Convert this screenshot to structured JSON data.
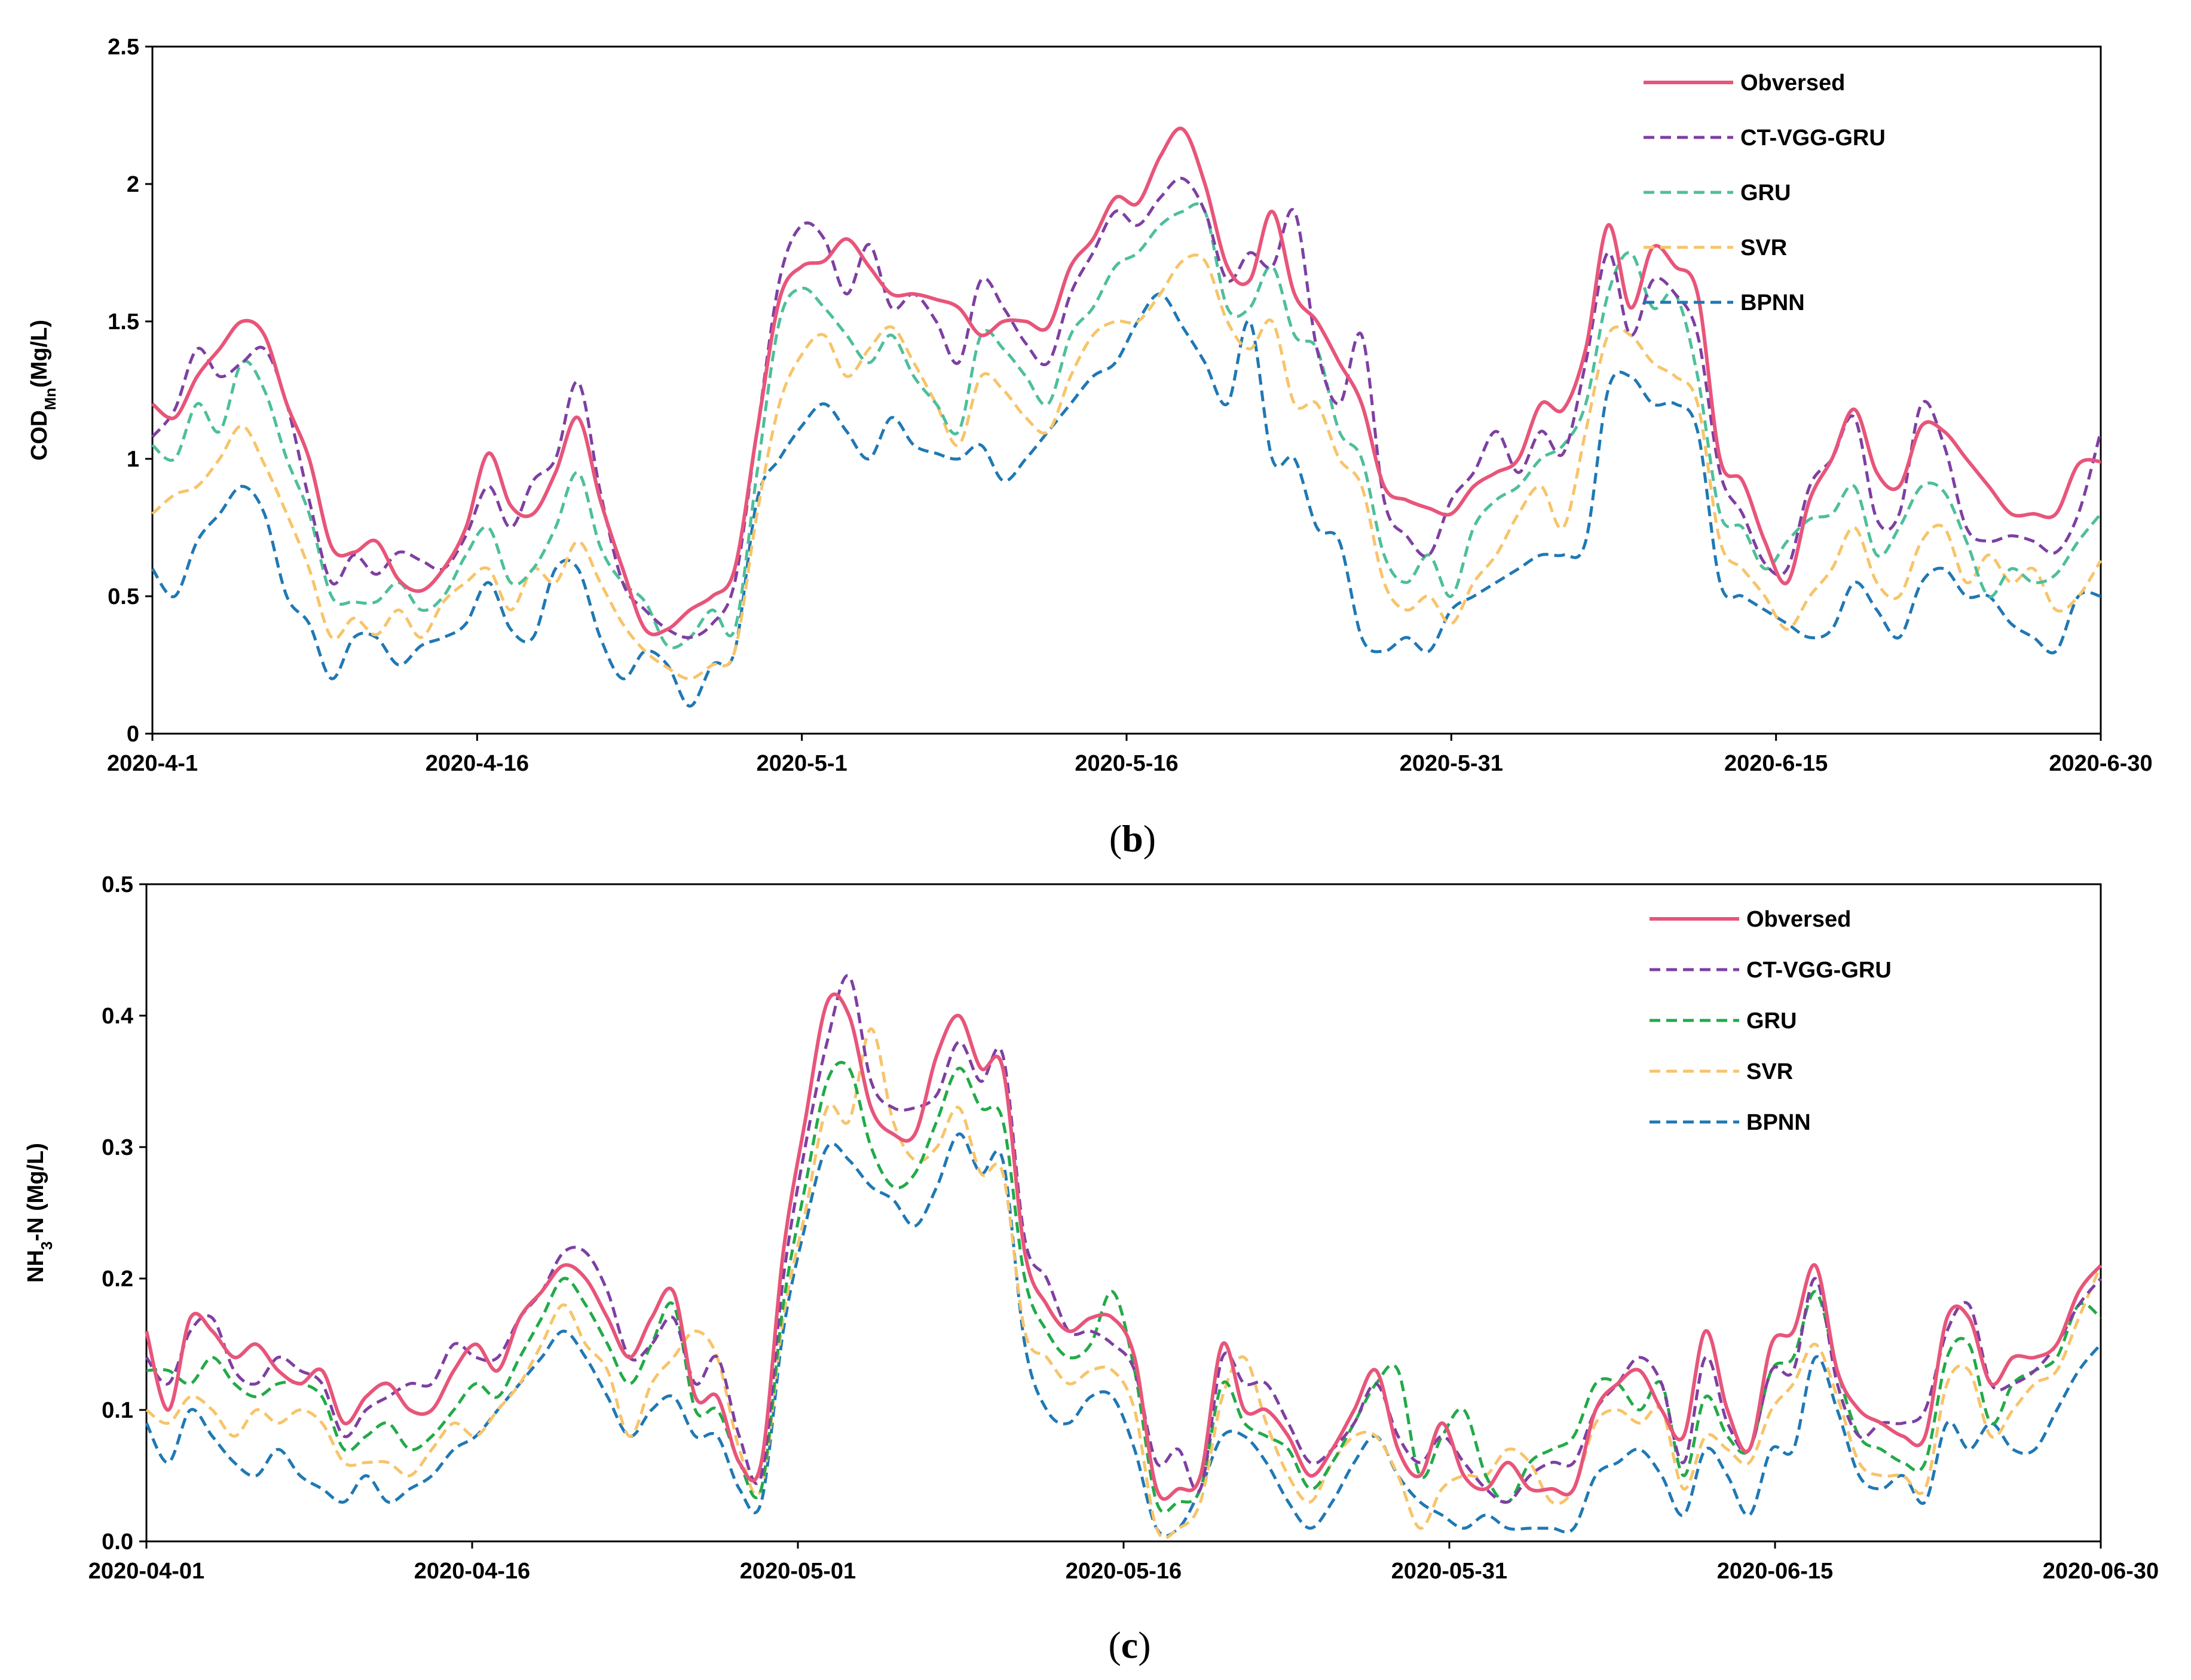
{
  "chart_data": [
    {
      "type": "line",
      "panel": "b",
      "caption": {
        "open": "(",
        "letter": "b",
        "close": ")"
      },
      "ylabel": {
        "base": "COD",
        "sub": "Mn",
        "rest": "(Mg/L)"
      },
      "ylim": [
        0,
        2.5
      ],
      "yticks": [
        "0",
        "0.5",
        "1",
        "1.5",
        "2",
        "2.5"
      ],
      "xticks": [
        "2020-4-1",
        "2020-4-16",
        "2020-5-1",
        "2020-5-16",
        "2020-5-31",
        "2020-6-15",
        "2020-6-30"
      ],
      "legend_position": "top-right",
      "series": [
        {
          "name": "Obversed",
          "color": "#e8557a",
          "dashed": false,
          "values": [
            1.2,
            1.15,
            1.3,
            1.4,
            1.5,
            1.45,
            1.2,
            1.0,
            0.68,
            0.66,
            0.7,
            0.56,
            0.52,
            0.6,
            0.75,
            1.02,
            0.83,
            0.8,
            0.95,
            1.15,
            0.85,
            0.6,
            0.38,
            0.38,
            0.45,
            0.5,
            0.6,
            1.1,
            1.58,
            1.7,
            1.72,
            1.8,
            1.7,
            1.6,
            1.6,
            1.58,
            1.55,
            1.45,
            1.5,
            1.5,
            1.48,
            1.7,
            1.8,
            1.95,
            1.93,
            2.1,
            2.2,
            2.0,
            1.7,
            1.65,
            1.9,
            1.6,
            1.5,
            1.35,
            1.2,
            0.9,
            0.85,
            0.82,
            0.8,
            0.9,
            0.95,
            1.0,
            1.2,
            1.18,
            1.4,
            1.85,
            1.55,
            1.77,
            1.7,
            1.6,
            1.0,
            0.92,
            0.7,
            0.55,
            0.85,
            1.0,
            1.18,
            0.95,
            0.9,
            1.12,
            1.1,
            1.0,
            0.9,
            0.8,
            0.8,
            0.8,
            0.98,
            0.99
          ]
        },
        {
          "name": "CT-VGG-GRU",
          "color": "#7e3fa2",
          "dashed": true,
          "values": [
            1.08,
            1.18,
            1.4,
            1.3,
            1.35,
            1.4,
            1.2,
            0.85,
            0.55,
            0.65,
            0.58,
            0.66,
            0.63,
            0.6,
            0.72,
            0.9,
            0.75,
            0.92,
            1.0,
            1.28,
            0.88,
            0.55,
            0.45,
            0.38,
            0.35,
            0.4,
            0.55,
            1.1,
            1.65,
            1.85,
            1.8,
            1.6,
            1.78,
            1.55,
            1.6,
            1.5,
            1.35,
            1.65,
            1.55,
            1.42,
            1.35,
            1.6,
            1.75,
            1.9,
            1.85,
            1.95,
            2.02,
            1.9,
            1.65,
            1.75,
            1.7,
            1.9,
            1.4,
            1.2,
            1.45,
            0.85,
            0.72,
            0.65,
            0.85,
            0.95,
            1.1,
            0.95,
            1.1,
            1.02,
            1.35,
            1.75,
            1.45,
            1.65,
            1.6,
            1.45,
            0.95,
            0.8,
            0.62,
            0.6,
            0.9,
            1.0,
            1.15,
            0.78,
            0.8,
            1.2,
            1.05,
            0.75,
            0.7,
            0.72,
            0.7,
            0.66,
            0.8,
            1.1
          ]
        },
        {
          "name": "GRU",
          "color": "#4dbf9a",
          "dashed": true,
          "values": [
            1.05,
            1.0,
            1.2,
            1.1,
            1.35,
            1.25,
            1.0,
            0.8,
            0.5,
            0.48,
            0.48,
            0.55,
            0.45,
            0.5,
            0.65,
            0.75,
            0.55,
            0.6,
            0.75,
            0.95,
            0.68,
            0.55,
            0.48,
            0.32,
            0.35,
            0.45,
            0.38,
            0.95,
            1.5,
            1.62,
            1.55,
            1.45,
            1.35,
            1.45,
            1.3,
            1.2,
            1.1,
            1.45,
            1.4,
            1.3,
            1.2,
            1.45,
            1.55,
            1.7,
            1.75,
            1.85,
            1.9,
            1.9,
            1.55,
            1.55,
            1.7,
            1.45,
            1.4,
            1.1,
            1.0,
            0.65,
            0.55,
            0.65,
            0.5,
            0.75,
            0.85,
            0.9,
            1.0,
            1.05,
            1.2,
            1.6,
            1.75,
            1.55,
            1.6,
            1.3,
            0.8,
            0.75,
            0.6,
            0.7,
            0.78,
            0.8,
            0.9,
            0.65,
            0.75,
            0.9,
            0.88,
            0.7,
            0.5,
            0.6,
            0.55,
            0.58,
            0.7,
            0.8
          ]
        },
        {
          "name": "SVR",
          "color": "#f7c46a",
          "dashed": true,
          "values": [
            0.8,
            0.87,
            0.9,
            1.0,
            1.12,
            0.98,
            0.8,
            0.6,
            0.35,
            0.42,
            0.36,
            0.45,
            0.35,
            0.48,
            0.55,
            0.6,
            0.45,
            0.6,
            0.55,
            0.7,
            0.55,
            0.4,
            0.3,
            0.24,
            0.2,
            0.25,
            0.3,
            0.8,
            1.2,
            1.38,
            1.45,
            1.3,
            1.4,
            1.48,
            1.35,
            1.2,
            1.05,
            1.3,
            1.25,
            1.15,
            1.1,
            1.3,
            1.45,
            1.5,
            1.5,
            1.6,
            1.72,
            1.72,
            1.5,
            1.4,
            1.5,
            1.2,
            1.2,
            1.0,
            0.9,
            0.55,
            0.45,
            0.5,
            0.4,
            0.55,
            0.65,
            0.8,
            0.9,
            0.75,
            1.1,
            1.45,
            1.45,
            1.35,
            1.3,
            1.2,
            0.7,
            0.6,
            0.5,
            0.38,
            0.5,
            0.6,
            0.75,
            0.55,
            0.5,
            0.7,
            0.75,
            0.55,
            0.65,
            0.55,
            0.6,
            0.45,
            0.5,
            0.63
          ]
        },
        {
          "name": "BPNN",
          "color": "#1f78b4",
          "dashed": true,
          "values": [
            0.6,
            0.5,
            0.7,
            0.8,
            0.9,
            0.8,
            0.5,
            0.4,
            0.2,
            0.35,
            0.35,
            0.25,
            0.32,
            0.35,
            0.4,
            0.55,
            0.38,
            0.35,
            0.6,
            0.6,
            0.35,
            0.2,
            0.3,
            0.25,
            0.1,
            0.25,
            0.3,
            0.85,
            1.0,
            1.12,
            1.2,
            1.1,
            1.0,
            1.15,
            1.05,
            1.02,
            1.0,
            1.05,
            0.92,
            1.0,
            1.1,
            1.2,
            1.3,
            1.35,
            1.5,
            1.6,
            1.48,
            1.35,
            1.2,
            1.5,
            1.0,
            1.0,
            0.75,
            0.7,
            0.35,
            0.3,
            0.35,
            0.3,
            0.45,
            0.5,
            0.55,
            0.6,
            0.65,
            0.65,
            0.7,
            1.25,
            1.3,
            1.2,
            1.2,
            1.1,
            0.55,
            0.5,
            0.45,
            0.4,
            0.35,
            0.38,
            0.55,
            0.45,
            0.35,
            0.55,
            0.6,
            0.5,
            0.5,
            0.4,
            0.35,
            0.3,
            0.5,
            0.5
          ]
        }
      ]
    },
    {
      "type": "line",
      "panel": "c",
      "caption": {
        "open": "(",
        "letter": "c",
        "close": ")"
      },
      "ylabel": {
        "base": "NH",
        "sub": "3",
        "rest": "-N (Mg/L)"
      },
      "ylim": [
        0,
        0.5
      ],
      "yticks": [
        "0.0",
        "0.1",
        "0.2",
        "0.3",
        "0.4",
        "0.5"
      ],
      "xticks": [
        "2020-04-01",
        "2020-04-16",
        "2020-05-01",
        "2020-05-16",
        "2020-05-31",
        "2020-06-15",
        "2020-06-30"
      ],
      "legend_position": "top-right",
      "series": [
        {
          "name": "Obversed",
          "color": "#e8557a",
          "dashed": false,
          "values": [
            0.16,
            0.1,
            0.17,
            0.16,
            0.14,
            0.15,
            0.13,
            0.12,
            0.13,
            0.09,
            0.11,
            0.12,
            0.1,
            0.1,
            0.13,
            0.15,
            0.13,
            0.17,
            0.19,
            0.21,
            0.2,
            0.17,
            0.14,
            0.17,
            0.19,
            0.11,
            0.11,
            0.06,
            0.06,
            0.22,
            0.32,
            0.41,
            0.4,
            0.33,
            0.31,
            0.31,
            0.37,
            0.4,
            0.36,
            0.36,
            0.22,
            0.18,
            0.16,
            0.17,
            0.17,
            0.14,
            0.04,
            0.04,
            0.05,
            0.15,
            0.1,
            0.1,
            0.08,
            0.05,
            0.07,
            0.1,
            0.13,
            0.07,
            0.05,
            0.09,
            0.05,
            0.04,
            0.06,
            0.04,
            0.04,
            0.04,
            0.1,
            0.12,
            0.13,
            0.1,
            0.08,
            0.16,
            0.1,
            0.07,
            0.15,
            0.16,
            0.21,
            0.13,
            0.1,
            0.09,
            0.08,
            0.08,
            0.17,
            0.17,
            0.12,
            0.14,
            0.14,
            0.15,
            0.19,
            0.21
          ]
        },
        {
          "name": "CT-VGG-GRU",
          "color": "#7e3fa2",
          "dashed": true,
          "values": [
            0.14,
            0.12,
            0.16,
            0.17,
            0.13,
            0.12,
            0.14,
            0.13,
            0.12,
            0.08,
            0.1,
            0.11,
            0.12,
            0.12,
            0.15,
            0.14,
            0.14,
            0.17,
            0.19,
            0.22,
            0.22,
            0.19,
            0.14,
            0.15,
            0.17,
            0.12,
            0.14,
            0.08,
            0.05,
            0.2,
            0.3,
            0.38,
            0.43,
            0.35,
            0.33,
            0.33,
            0.34,
            0.38,
            0.35,
            0.37,
            0.23,
            0.2,
            0.16,
            0.16,
            0.15,
            0.13,
            0.06,
            0.07,
            0.04,
            0.14,
            0.12,
            0.12,
            0.09,
            0.06,
            0.07,
            0.09,
            0.12,
            0.08,
            0.06,
            0.08,
            0.06,
            0.04,
            0.03,
            0.05,
            0.06,
            0.06,
            0.1,
            0.12,
            0.14,
            0.12,
            0.06,
            0.14,
            0.09,
            0.07,
            0.13,
            0.13,
            0.2,
            0.12,
            0.08,
            0.09,
            0.09,
            0.1,
            0.16,
            0.18,
            0.12,
            0.12,
            0.13,
            0.15,
            0.18,
            0.2
          ]
        },
        {
          "name": "GRU",
          "color": "#22aa48",
          "dashed": true,
          "values": [
            0.13,
            0.13,
            0.12,
            0.14,
            0.12,
            0.11,
            0.12,
            0.12,
            0.11,
            0.07,
            0.08,
            0.09,
            0.07,
            0.08,
            0.1,
            0.12,
            0.11,
            0.14,
            0.17,
            0.2,
            0.18,
            0.15,
            0.12,
            0.15,
            0.18,
            0.1,
            0.1,
            0.06,
            0.04,
            0.18,
            0.27,
            0.35,
            0.36,
            0.3,
            0.27,
            0.28,
            0.32,
            0.36,
            0.33,
            0.32,
            0.2,
            0.16,
            0.14,
            0.15,
            0.19,
            0.13,
            0.03,
            0.03,
            0.04,
            0.12,
            0.09,
            0.08,
            0.07,
            0.04,
            0.06,
            0.09,
            0.12,
            0.13,
            0.05,
            0.08,
            0.1,
            0.05,
            0.03,
            0.06,
            0.07,
            0.08,
            0.12,
            0.12,
            0.1,
            0.12,
            0.05,
            0.11,
            0.08,
            0.07,
            0.13,
            0.14,
            0.19,
            0.13,
            0.08,
            0.07,
            0.06,
            0.06,
            0.14,
            0.15,
            0.09,
            0.12,
            0.13,
            0.14,
            0.18,
            0.17
          ]
        },
        {
          "name": "SVR",
          "color": "#f7c46a",
          "dashed": true,
          "values": [
            0.1,
            0.09,
            0.11,
            0.1,
            0.08,
            0.1,
            0.09,
            0.1,
            0.09,
            0.06,
            0.06,
            0.06,
            0.05,
            0.07,
            0.09,
            0.08,
            0.1,
            0.12,
            0.15,
            0.18,
            0.15,
            0.13,
            0.08,
            0.12,
            0.14,
            0.16,
            0.14,
            0.07,
            0.04,
            0.17,
            0.25,
            0.33,
            0.32,
            0.39,
            0.32,
            0.29,
            0.3,
            0.33,
            0.28,
            0.28,
            0.16,
            0.14,
            0.12,
            0.13,
            0.13,
            0.1,
            0.01,
            0.01,
            0.03,
            0.11,
            0.14,
            0.09,
            0.05,
            0.03,
            0.06,
            0.08,
            0.08,
            0.05,
            0.01,
            0.04,
            0.05,
            0.05,
            0.07,
            0.06,
            0.03,
            0.04,
            0.09,
            0.1,
            0.09,
            0.1,
            0.04,
            0.08,
            0.07,
            0.06,
            0.1,
            0.12,
            0.15,
            0.11,
            0.06,
            0.05,
            0.05,
            0.04,
            0.12,
            0.13,
            0.08,
            0.1,
            0.12,
            0.13,
            0.17,
            0.21
          ]
        },
        {
          "name": "BPNN",
          "color": "#1f78b4",
          "dashed": true,
          "values": [
            0.09,
            0.06,
            0.1,
            0.08,
            0.06,
            0.05,
            0.07,
            0.05,
            0.04,
            0.03,
            0.05,
            0.03,
            0.04,
            0.05,
            0.07,
            0.08,
            0.1,
            0.12,
            0.14,
            0.16,
            0.14,
            0.11,
            0.08,
            0.1,
            0.11,
            0.08,
            0.08,
            0.04,
            0.03,
            0.16,
            0.24,
            0.3,
            0.29,
            0.27,
            0.26,
            0.24,
            0.27,
            0.31,
            0.28,
            0.29,
            0.15,
            0.1,
            0.09,
            0.11,
            0.11,
            0.07,
            0.01,
            0.01,
            0.04,
            0.08,
            0.08,
            0.06,
            0.03,
            0.01,
            0.03,
            0.06,
            0.08,
            0.05,
            0.03,
            0.02,
            0.01,
            0.02,
            0.01,
            0.01,
            0.01,
            0.01,
            0.05,
            0.06,
            0.07,
            0.05,
            0.02,
            0.07,
            0.05,
            0.02,
            0.07,
            0.07,
            0.14,
            0.1,
            0.05,
            0.04,
            0.05,
            0.03,
            0.09,
            0.07,
            0.09,
            0.07,
            0.07,
            0.1,
            0.13,
            0.15
          ]
        }
      ]
    }
  ]
}
